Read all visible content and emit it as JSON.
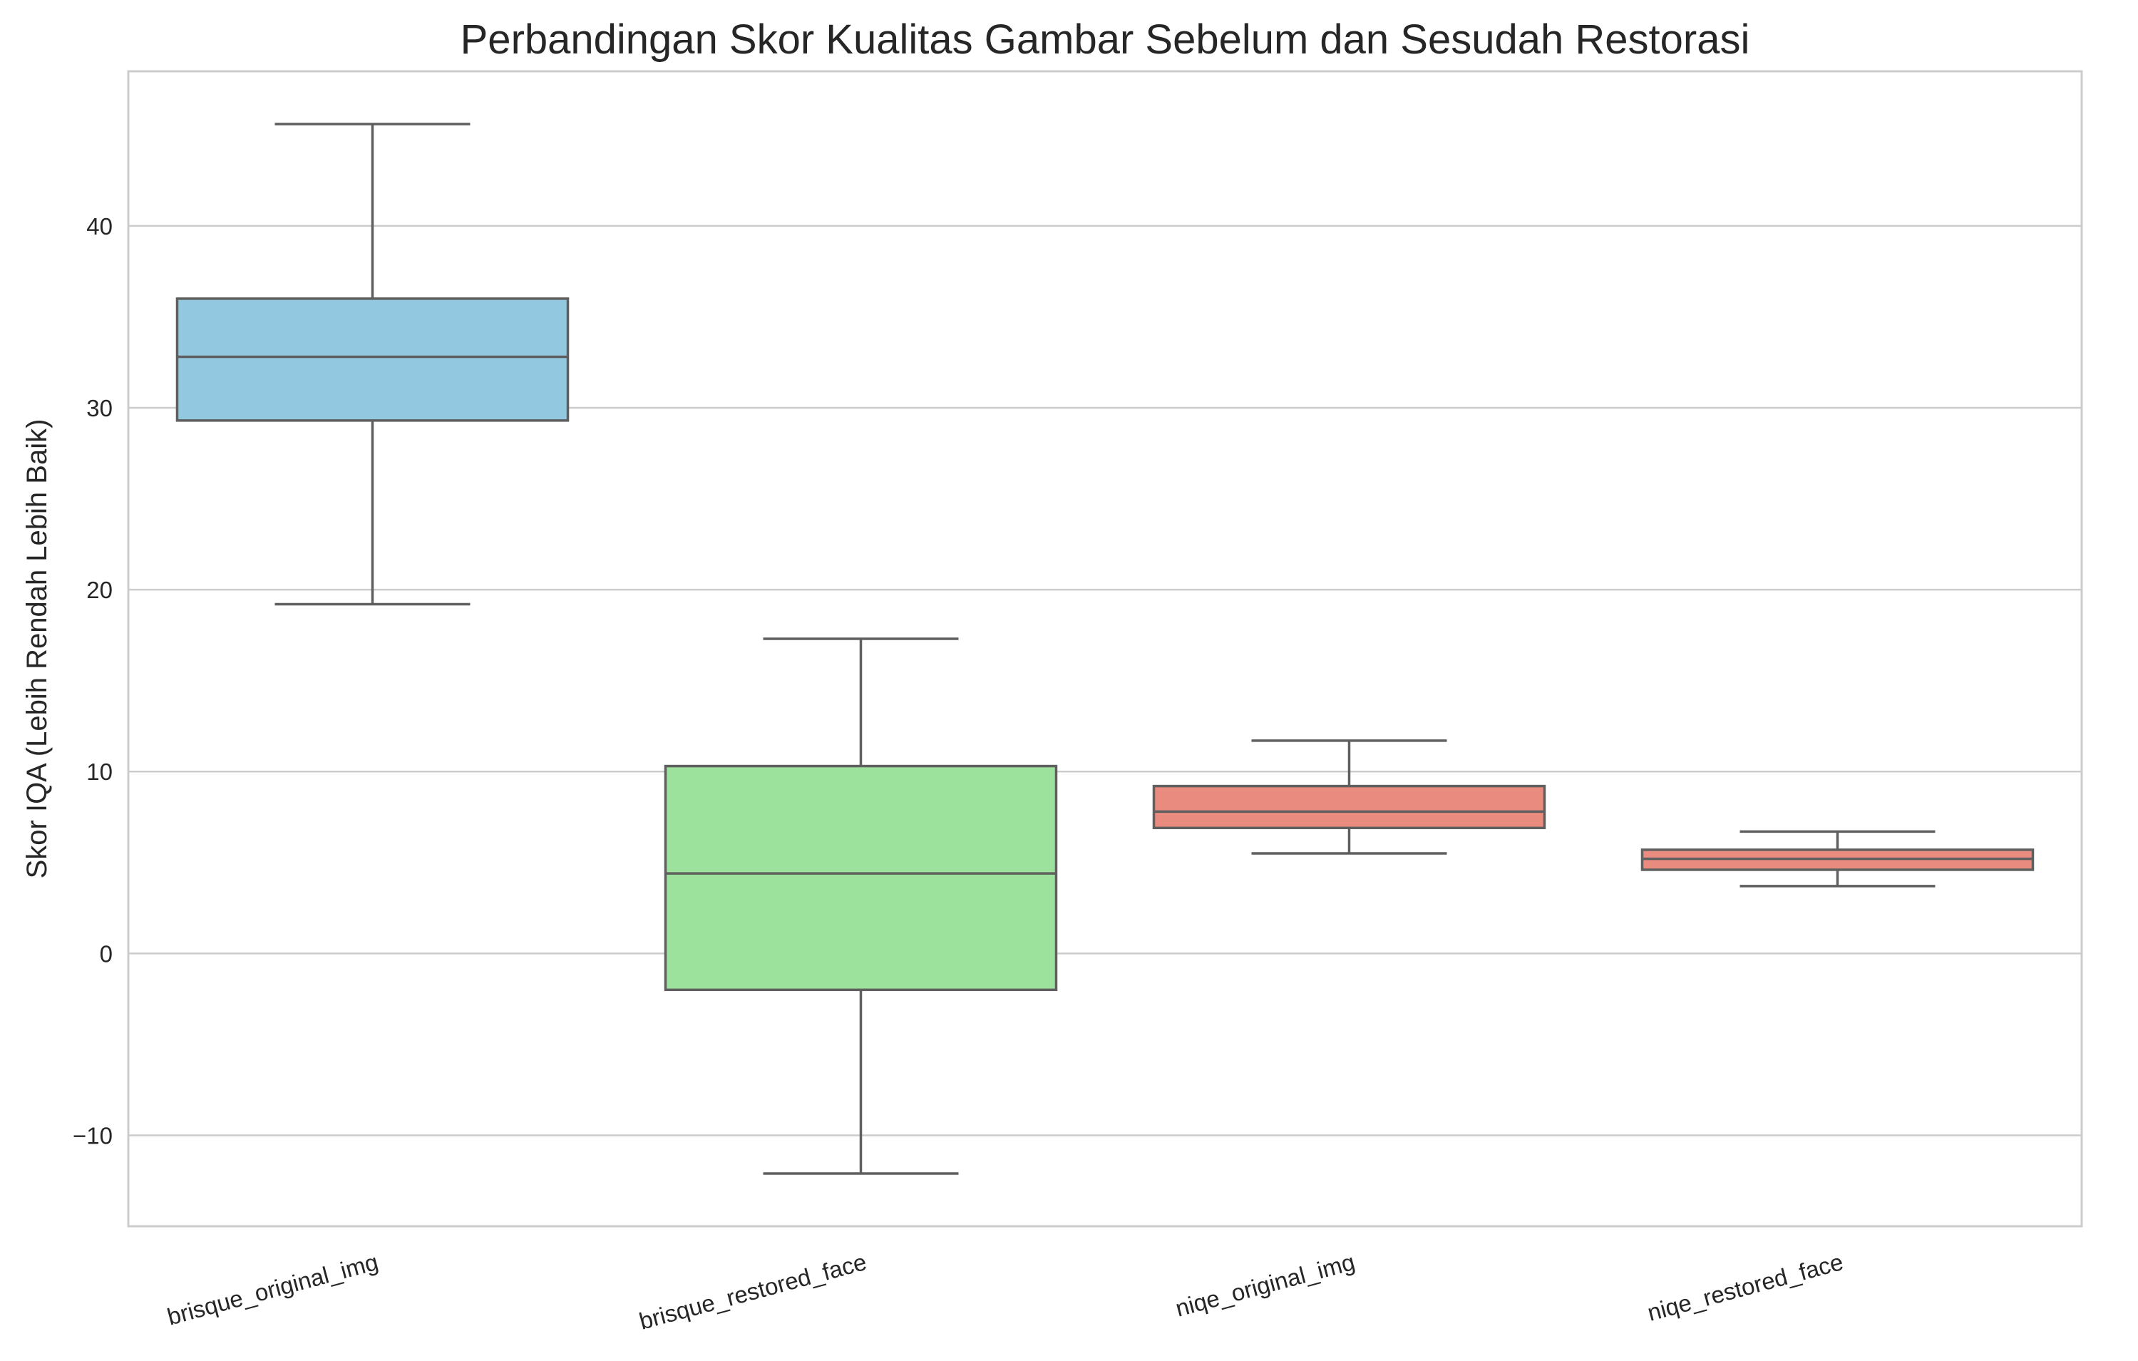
{
  "chart_data": {
    "type": "box",
    "title": "Perbandingan Skor Kualitas Gambar Sebelum dan Sesudah Restorasi",
    "xlabel": "",
    "ylabel": "Skor IQA (Lebih Rendah Lebih Baik)",
    "ylim": [
      -15,
      48.5
    ],
    "yticks": [
      -10,
      0,
      10,
      20,
      30,
      40
    ],
    "ytick_labels": [
      "−10",
      "0",
      "10",
      "20",
      "30",
      "40"
    ],
    "grid": "horizontal",
    "categories": [
      "brisque_original_img",
      "brisque_restored_face",
      "niqe_original_img",
      "niqe_restored_face"
    ],
    "boxes": [
      {
        "whisker_low": 19.2,
        "q1": 29.3,
        "median": 32.8,
        "q3": 36.0,
        "whisker_high": 45.6,
        "color": "#92c9e0"
      },
      {
        "whisker_low": -12.1,
        "q1": -2.0,
        "median": 4.4,
        "q3": 10.3,
        "whisker_high": 17.3,
        "color": "#9ce29c"
      },
      {
        "whisker_low": 5.5,
        "q1": 6.9,
        "median": 7.8,
        "q3": 9.2,
        "whisker_high": 11.7,
        "color": "#ea8b80"
      },
      {
        "whisker_low": 3.7,
        "q1": 4.6,
        "median": 5.2,
        "q3": 5.7,
        "whisker_high": 6.7,
        "color": "#ea8b80"
      }
    ],
    "colors": {
      "box_edge": "#5f5f5f",
      "grid": "#cccccc",
      "frame": "#cccccc",
      "text": "#262626"
    }
  }
}
